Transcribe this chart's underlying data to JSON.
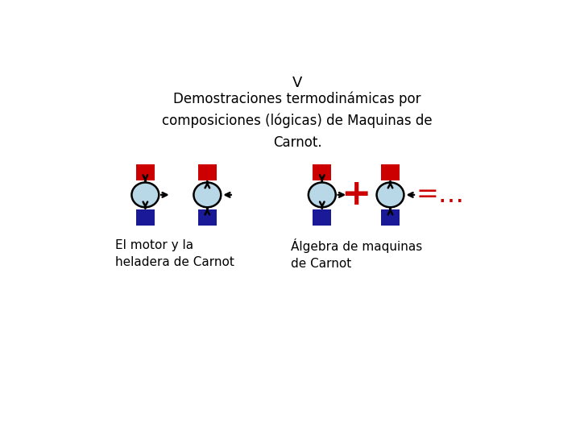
{
  "bg_color": "#ffffff",
  "title": "V",
  "subtitle": "Demostraciones termodinámicas por\ncomposiciones (lógicas) de Maquinas de\nCarnot.",
  "label_left": "El motor y la\nheladera de Carnot",
  "label_right": "Álgebra de maquinas\nde Carnot",
  "plus_symbol": "+",
  "equals_symbol": "=...",
  "red_color": "#cc0000",
  "blue_color": "#1a1a99",
  "oval_color": "#b8d8e8",
  "oval_edge_color": "#000000",
  "text_color": "#000000",
  "red_symbol_color": "#cc0000",
  "title_fontsize": 13,
  "subtitle_fontsize": 12,
  "label_fontsize": 11,
  "operator_fontsize": 26
}
